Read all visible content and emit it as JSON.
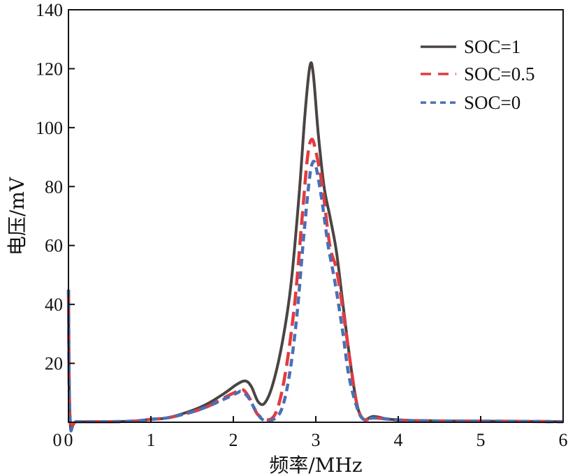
{
  "chart_data": {
    "type": "line",
    "xlabel": "频率/MHz",
    "ylabel": "电压/mV",
    "xlim": [
      0,
      6
    ],
    "ylim": [
      0,
      140
    ],
    "xticks": [
      0,
      1,
      2,
      3,
      4,
      5,
      6
    ],
    "yticks": [
      20,
      40,
      60,
      80,
      100,
      120,
      140
    ],
    "grid": false,
    "legend_position": "top-right",
    "series": [
      {
        "name": "SOC=1",
        "color": "#4a4443",
        "dash": "solid",
        "points": [
          [
            0.0,
            45
          ],
          [
            0.02,
            0.5
          ],
          [
            0.1,
            0.2
          ],
          [
            0.5,
            0.2
          ],
          [
            0.8,
            0.4
          ],
          [
            1.0,
            1.0
          ],
          [
            1.2,
            1.5
          ],
          [
            1.5,
            4.0
          ],
          [
            1.7,
            6.5
          ],
          [
            1.9,
            10.0
          ],
          [
            2.05,
            13.0
          ],
          [
            2.15,
            14.0
          ],
          [
            2.22,
            12.0
          ],
          [
            2.3,
            7.0
          ],
          [
            2.38,
            6.5
          ],
          [
            2.48,
            13.0
          ],
          [
            2.6,
            28.0
          ],
          [
            2.7,
            47.0
          ],
          [
            2.8,
            78.0
          ],
          [
            2.87,
            105.0
          ],
          [
            2.93,
            121.0
          ],
          [
            2.97,
            118.0
          ],
          [
            3.03,
            98.0
          ],
          [
            3.1,
            80.0
          ],
          [
            3.17,
            70.0
          ],
          [
            3.25,
            58.0
          ],
          [
            3.33,
            40.0
          ],
          [
            3.42,
            20.0
          ],
          [
            3.5,
            6.0
          ],
          [
            3.58,
            1.0
          ],
          [
            3.7,
            2.0
          ],
          [
            3.9,
            1.0
          ],
          [
            4.2,
            0.6
          ],
          [
            4.8,
            0.4
          ],
          [
            5.5,
            0.3
          ],
          [
            6.0,
            0.2
          ]
        ]
      },
      {
        "name": "SOC=0.5",
        "color": "#e23b3f",
        "dash": "long-dash",
        "points": [
          [
            0.0,
            45
          ],
          [
            0.02,
            0.5
          ],
          [
            0.1,
            0.2
          ],
          [
            0.5,
            0.2
          ],
          [
            0.8,
            0.4
          ],
          [
            1.0,
            1.0
          ],
          [
            1.2,
            1.5
          ],
          [
            1.5,
            3.5
          ],
          [
            1.7,
            5.5
          ],
          [
            1.9,
            8.5
          ],
          [
            2.05,
            10.5
          ],
          [
            2.12,
            11.0
          ],
          [
            2.2,
            8.0
          ],
          [
            2.3,
            2.5
          ],
          [
            2.45,
            1.0
          ],
          [
            2.55,
            6.0
          ],
          [
            2.65,
            20.0
          ],
          [
            2.75,
            42.0
          ],
          [
            2.83,
            68.0
          ],
          [
            2.9,
            90.0
          ],
          [
            2.95,
            96.0
          ],
          [
            3.0,
            92.0
          ],
          [
            3.08,
            80.0
          ],
          [
            3.17,
            60.0
          ],
          [
            3.25,
            52.0
          ],
          [
            3.33,
            38.0
          ],
          [
            3.42,
            20.0
          ],
          [
            3.5,
            6.0
          ],
          [
            3.58,
            1.0
          ],
          [
            3.7,
            1.5
          ],
          [
            3.9,
            1.0
          ],
          [
            4.2,
            0.5
          ],
          [
            4.8,
            0.4
          ],
          [
            5.5,
            0.3
          ],
          [
            6.0,
            0.2
          ]
        ]
      },
      {
        "name": "SOC=0",
        "color": "#4b6fb5",
        "dash": "short-dash",
        "points": [
          [
            0.0,
            45
          ],
          [
            0.02,
            0.5
          ],
          [
            0.1,
            0.2
          ],
          [
            0.5,
            0.2
          ],
          [
            0.8,
            0.4
          ],
          [
            1.0,
            1.0
          ],
          [
            1.2,
            1.5
          ],
          [
            1.5,
            3.5
          ],
          [
            1.7,
            5.5
          ],
          [
            1.9,
            8.0
          ],
          [
            2.05,
            10.0
          ],
          [
            2.1,
            10.5
          ],
          [
            2.18,
            8.5
          ],
          [
            2.27,
            4.0
          ],
          [
            2.35,
            1.0
          ],
          [
            2.45,
            0.5
          ],
          [
            2.58,
            4.0
          ],
          [
            2.68,
            16.0
          ],
          [
            2.77,
            36.0
          ],
          [
            2.85,
            62.0
          ],
          [
            2.92,
            82.0
          ],
          [
            2.96,
            88.0
          ],
          [
            3.0,
            87.0
          ],
          [
            3.07,
            76.0
          ],
          [
            3.15,
            60.0
          ],
          [
            3.23,
            48.0
          ],
          [
            3.32,
            32.0
          ],
          [
            3.4,
            16.0
          ],
          [
            3.5,
            5.0
          ],
          [
            3.58,
            1.0
          ],
          [
            3.7,
            1.5
          ],
          [
            3.9,
            1.0
          ],
          [
            4.2,
            0.5
          ],
          [
            4.8,
            0.4
          ],
          [
            5.5,
            0.3
          ],
          [
            6.0,
            0.2
          ]
        ]
      }
    ]
  }
}
